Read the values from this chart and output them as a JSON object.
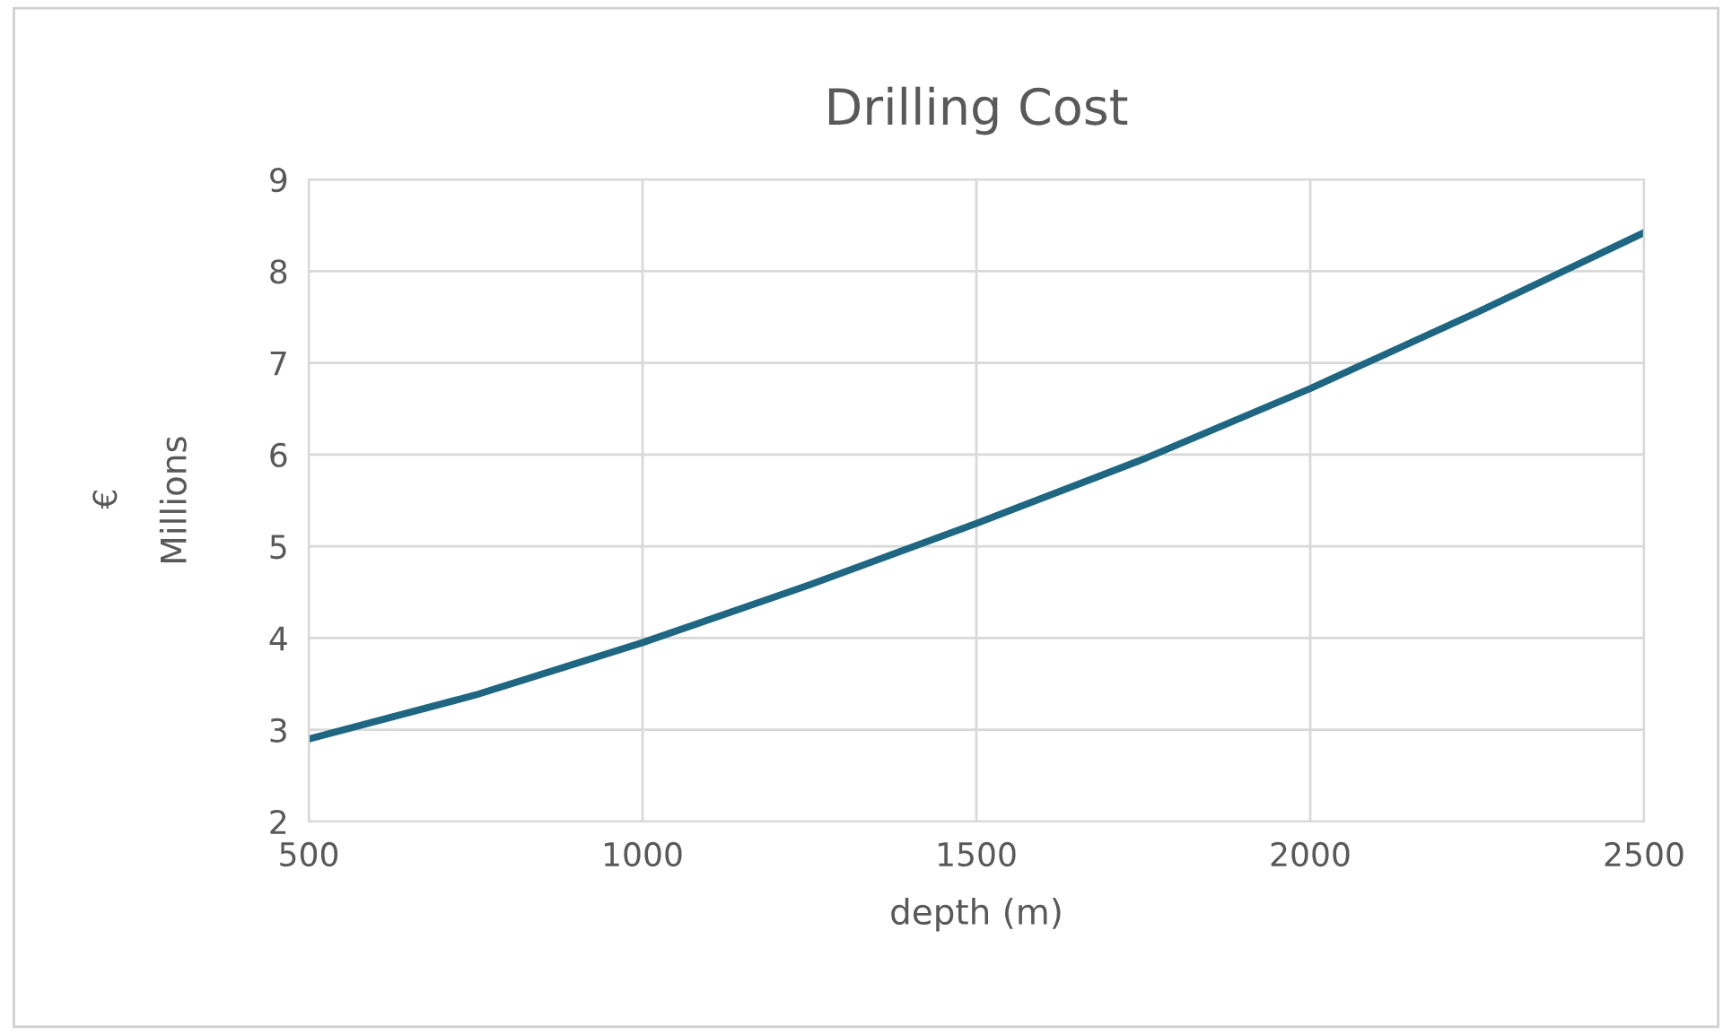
{
  "chart_data": {
    "type": "line",
    "title": "Drilling Cost",
    "xlabel": "depth (m)",
    "ylabel": "Millions",
    "annotations": [
      "€"
    ],
    "x": [
      500,
      750,
      1000,
      1250,
      1500,
      1750,
      2000,
      2250,
      2500
    ],
    "series": [
      {
        "color": "#1f6682",
        "values": [
          2.9,
          3.38,
          3.95,
          4.58,
          5.25,
          5.95,
          6.72,
          7.55,
          8.42
        ]
      }
    ],
    "xlim": [
      500,
      2500
    ],
    "xticks": [
      500,
      1000,
      1500,
      2000,
      2500
    ],
    "ylim": [
      2,
      9
    ],
    "yticks": [
      2,
      3,
      4,
      5,
      6,
      7,
      8,
      9
    ],
    "grid": true,
    "marker": "none",
    "line_style": "solid"
  }
}
